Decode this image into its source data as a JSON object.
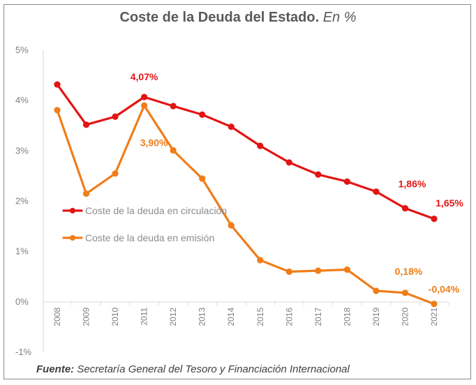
{
  "chart_data": {
    "type": "line",
    "title": "Coste de la Deuda del Estado.",
    "title_suffix": "En %",
    "categories": [
      "2008",
      "2009",
      "2010",
      "2011",
      "2012",
      "2013",
      "2014",
      "2015",
      "2016",
      "2017",
      "2018",
      "2019",
      "2020",
      "2021"
    ],
    "ylim": [
      -1,
      5
    ],
    "yticks": [
      "5%",
      "4%",
      "3%",
      "2%",
      "1%",
      "0%",
      "-1%"
    ],
    "ytick_values": [
      5,
      4,
      3,
      2,
      1,
      0,
      -1
    ],
    "series": [
      {
        "name": "Coste de la deuda en circulación",
        "color": "#e31414",
        "values": [
          4.32,
          3.52,
          3.68,
          4.07,
          3.89,
          3.72,
          3.48,
          3.1,
          2.77,
          2.53,
          2.39,
          2.19,
          1.86,
          1.65
        ]
      },
      {
        "name": "Coste de la deuda en emisión",
        "color": "#f07d19",
        "values": [
          3.81,
          2.15,
          2.55,
          3.9,
          3.01,
          2.45,
          1.52,
          0.83,
          0.6,
          0.62,
          0.64,
          0.22,
          0.18,
          -0.04
        ]
      }
    ],
    "annotations": [
      {
        "series": 0,
        "index": 3,
        "text": "4,07%"
      },
      {
        "series": 1,
        "index": 3,
        "text": "3,90%"
      },
      {
        "series": 0,
        "index": 12,
        "text": "1,86%"
      },
      {
        "series": 0,
        "index": 13,
        "text": "1,65%"
      },
      {
        "series": 1,
        "index": 12,
        "text": "0,18%"
      },
      {
        "series": 1,
        "index": 13,
        "text": "-0,04%"
      }
    ],
    "legend_position": "left-middle",
    "grid": false
  },
  "source": {
    "label": "Fuente:",
    "text": "Secretaría General del Tesoro y Financiación Internacional"
  }
}
